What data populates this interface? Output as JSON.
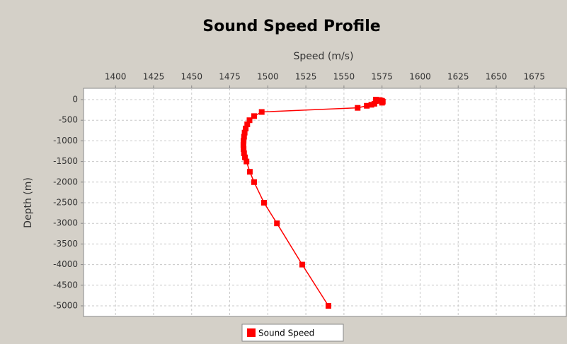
{
  "chart_data": {
    "type": "line",
    "title": "Sound Speed Profile",
    "xlabel": "Speed (m/s)",
    "ylabel": "Depth (m)",
    "xlim": [
      1379,
      1696
    ],
    "xticks": [
      1400,
      1425,
      1450,
      1475,
      1500,
      1525,
      1550,
      1575,
      1600,
      1625,
      1650,
      1675
    ],
    "ylim": [
      -5257,
      274
    ],
    "yticks": [
      0,
      -500,
      -1000,
      -1500,
      -2000,
      -2500,
      -3000,
      -3500,
      -4000,
      -4500,
      -5000
    ],
    "grid": true,
    "legend": "bottom",
    "series": [
      {
        "name": "Sound Speed",
        "color": "#ff0000",
        "x": [
          1571,
          1573,
          1574,
          1575,
          1575.5,
          1575,
          1570,
          1568,
          1565,
          1559,
          1496,
          1491,
          1488,
          1486.5,
          1485.5,
          1484.8,
          1484.4,
          1484.1,
          1484,
          1484.1,
          1484.4,
          1485,
          1486,
          1488.2,
          1491,
          1497.5,
          1506,
          1522.6,
          1539.8
        ],
        "values": [
          0,
          -10,
          -20,
          -30,
          -50,
          -75,
          -100,
          -125,
          -150,
          -200,
          -300,
          -400,
          -500,
          -600,
          -700,
          -800,
          -900,
          -1000,
          -1100,
          -1200,
          -1300,
          -1400,
          -1500,
          -1750,
          -2000,
          -2500,
          -3000,
          -4000,
          -5000
        ]
      }
    ]
  }
}
